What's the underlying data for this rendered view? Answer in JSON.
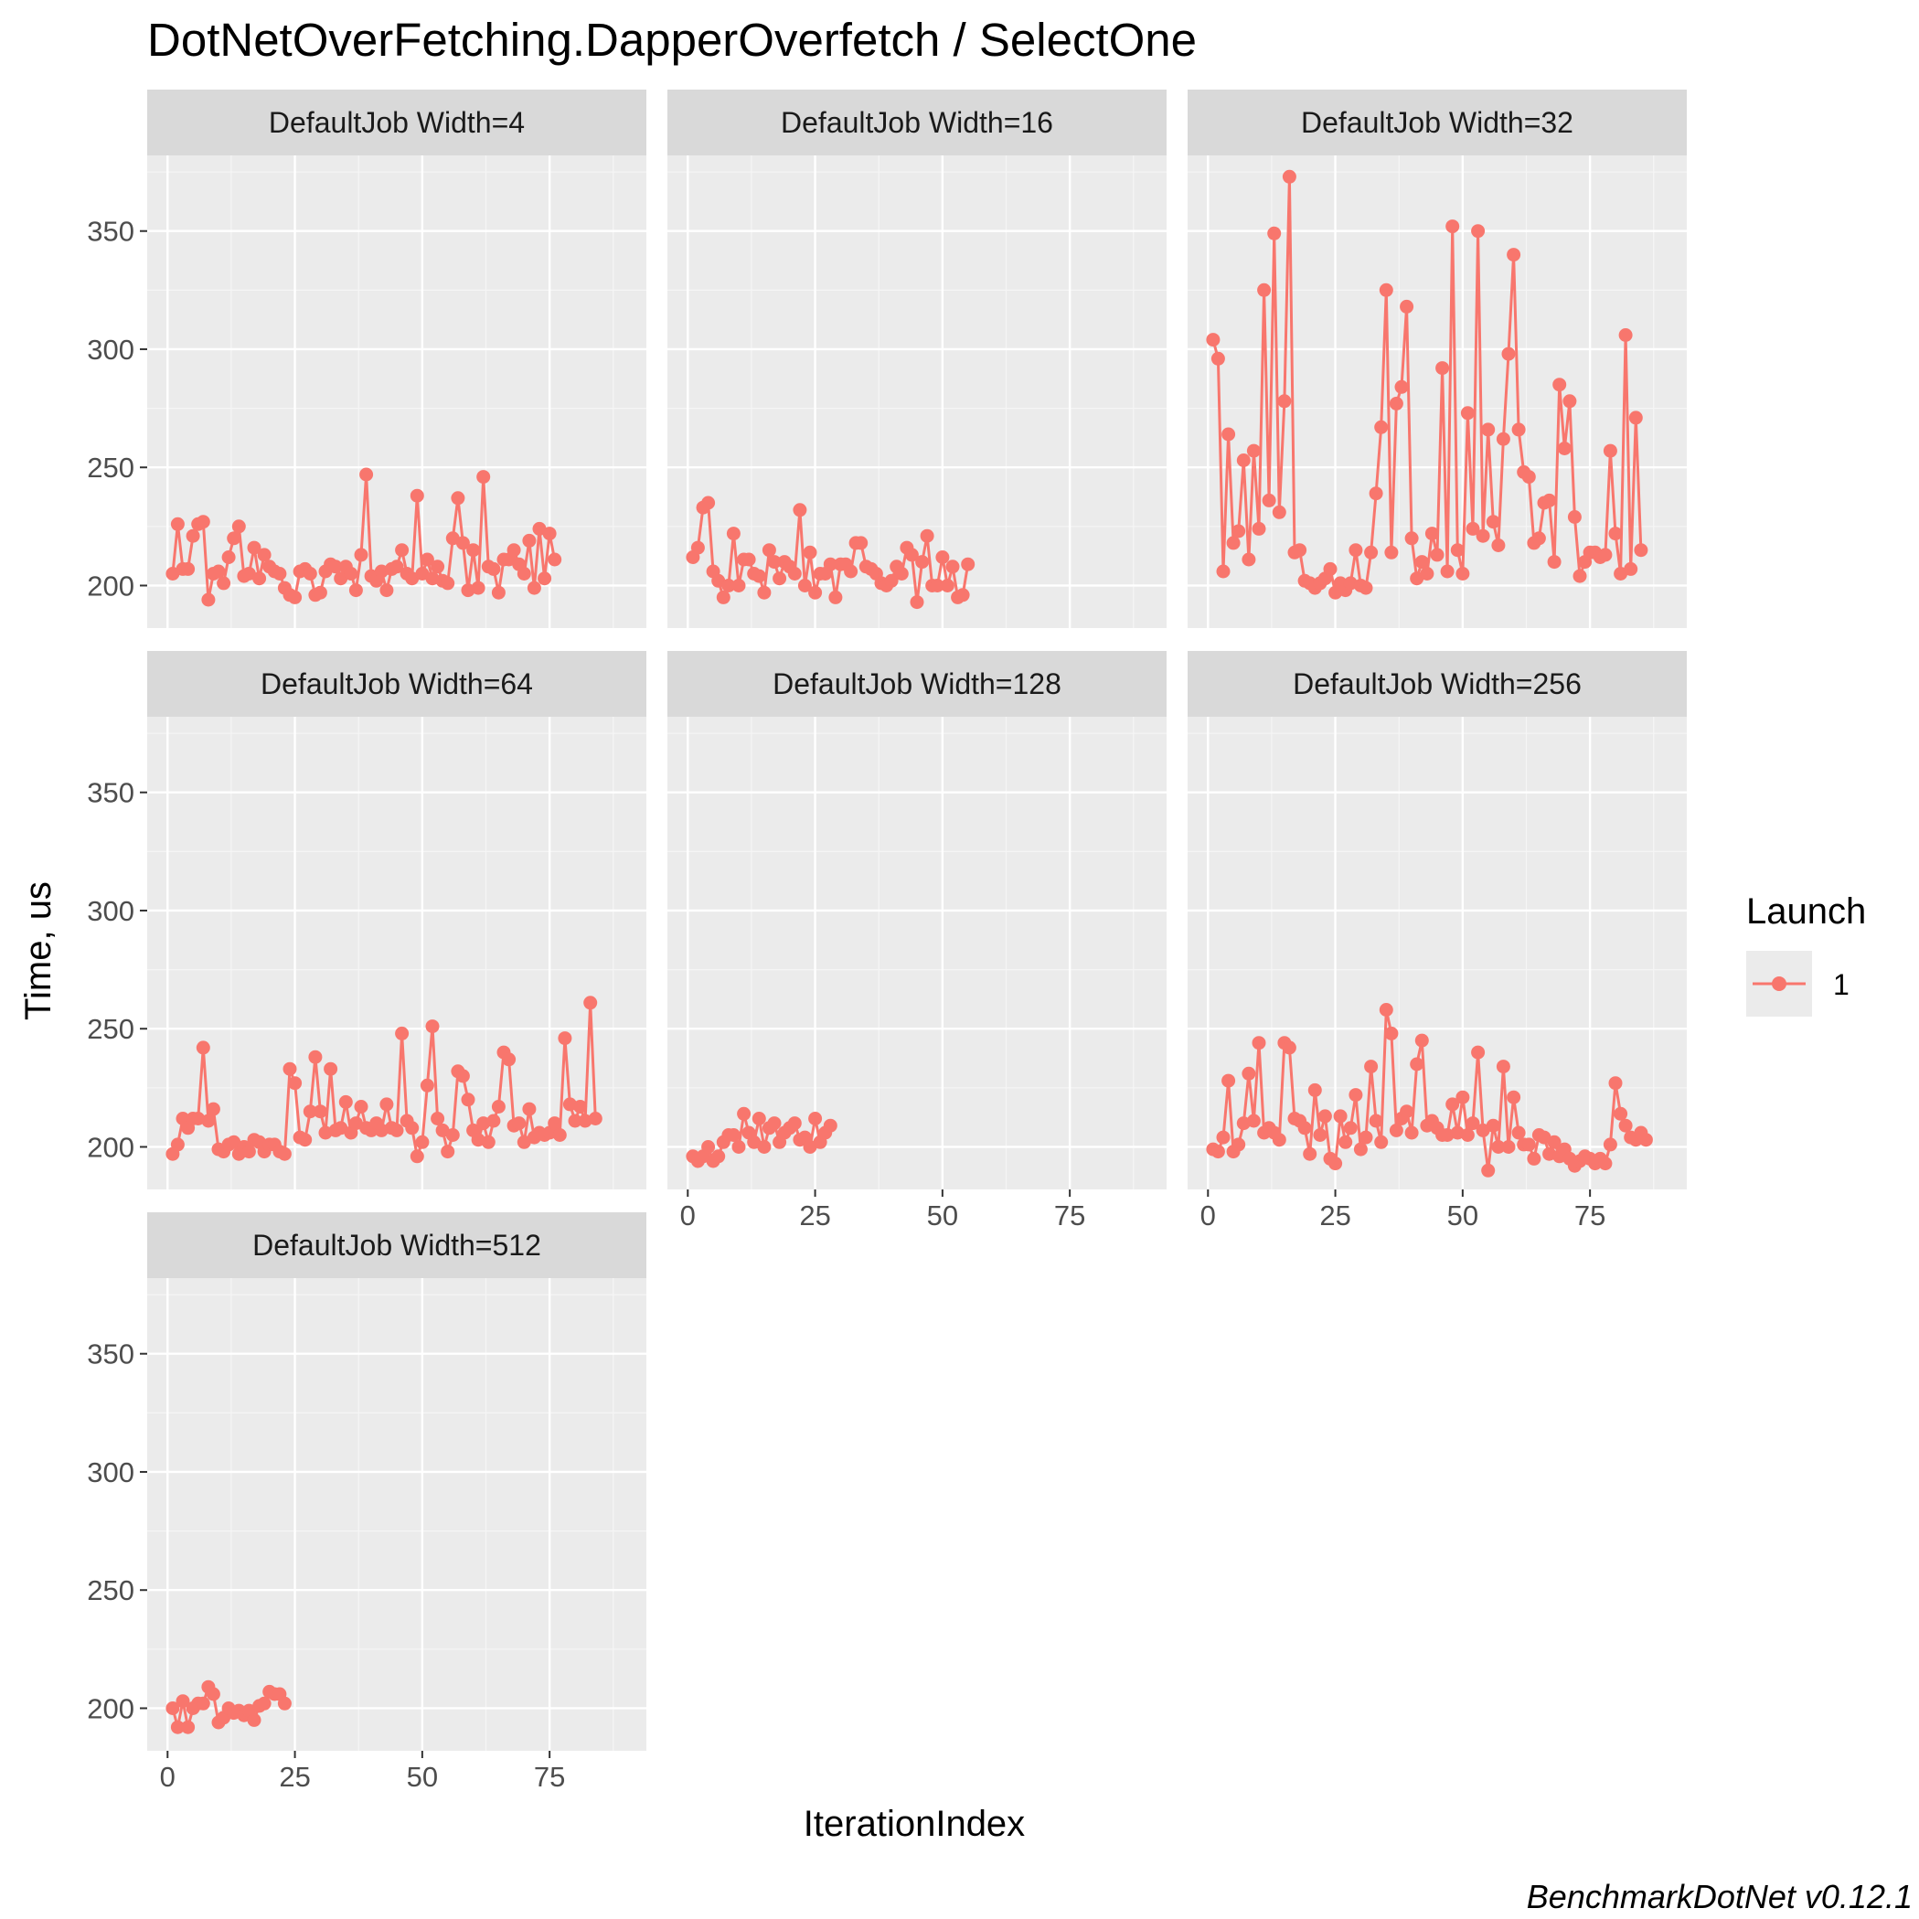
{
  "chart_data": {
    "type": "line",
    "title": "DotNetOverFetching.DapperOverfetch / SelectOne",
    "xlabel": "IterationIndex",
    "ylabel": "Time, us",
    "caption": "BenchmarkDotNet v0.12.1",
    "legend": {
      "title": "Launch",
      "position": "right",
      "entries": [
        {
          "label": "1",
          "color": "#F8766D"
        }
      ]
    },
    "xlim": [
      -4,
      94
    ],
    "ylim": [
      182,
      382
    ],
    "x_ticks": [
      0,
      25,
      50,
      75
    ],
    "y_ticks": [
      200,
      250,
      300,
      350
    ],
    "grid": true,
    "series_color": "#F8766D",
    "panels": [
      {
        "strip": "DefaultJob Width=4",
        "x_start": 1,
        "values": [
          205,
          226,
          207,
          207,
          221,
          226,
          227,
          194,
          205,
          206,
          201,
          212,
          220,
          225,
          204,
          205,
          216,
          203,
          213,
          208,
          206,
          205,
          199,
          196,
          195,
          206,
          207,
          205,
          196,
          197,
          206,
          209,
          208,
          203,
          208,
          205,
          198,
          213,
          247,
          204,
          202,
          206,
          198,
          207,
          208,
          215,
          205,
          203,
          238,
          205,
          211,
          203,
          208,
          202,
          201,
          220,
          237,
          218,
          198,
          215,
          199,
          246,
          208,
          207,
          197,
          211,
          211,
          215,
          209,
          205,
          219,
          199,
          224,
          203,
          222,
          211
        ]
      },
      {
        "strip": "DefaultJob Width=16",
        "x_start": 1,
        "values": [
          212,
          216,
          233,
          235,
          206,
          202,
          195,
          200,
          222,
          200,
          211,
          211,
          205,
          204,
          197,
          215,
          210,
          203,
          210,
          208,
          205,
          232,
          200,
          214,
          197,
          205,
          205,
          209,
          195,
          209,
          209,
          206,
          218,
          218,
          208,
          207,
          205,
          201,
          200,
          202,
          208,
          205,
          216,
          213,
          193,
          210,
          221,
          200,
          200,
          212,
          200,
          208,
          195,
          196,
          209
        ]
      },
      {
        "strip": "DefaultJob Width=32",
        "x_start": 1,
        "values": [
          304,
          296,
          206,
          264,
          218,
          223,
          253,
          211,
          257,
          224,
          325,
          236,
          349,
          231,
          278,
          373,
          214,
          215,
          202,
          201,
          199,
          201,
          203,
          207,
          197,
          201,
          198,
          201,
          215,
          200,
          199,
          214,
          239,
          267,
          325,
          214,
          277,
          284,
          318,
          220,
          203,
          210,
          205,
          222,
          213,
          292,
          206,
          352,
          215,
          205,
          273,
          224,
          350,
          221,
          266,
          227,
          217,
          262,
          298,
          340,
          266,
          248,
          246,
          218,
          220,
          235,
          236,
          210,
          285,
          258,
          278,
          229,
          204,
          210,
          214,
          214,
          212,
          213,
          257,
          222,
          205,
          306,
          207,
          271,
          215
        ]
      },
      {
        "strip": "DefaultJob Width=64",
        "x_start": 1,
        "values": [
          197,
          201,
          212,
          208,
          212,
          212,
          242,
          211,
          216,
          199,
          198,
          201,
          202,
          197,
          200,
          198,
          203,
          202,
          198,
          201,
          201,
          198,
          197,
          233,
          227,
          204,
          203,
          215,
          238,
          215,
          206,
          233,
          207,
          208,
          219,
          206,
          210,
          217,
          208,
          207,
          210,
          207,
          218,
          208,
          207,
          248,
          211,
          208,
          196,
          202,
          226,
          251,
          212,
          207,
          198,
          205,
          232,
          230,
          220,
          207,
          203,
          210,
          202,
          211,
          217,
          240,
          237,
          209,
          210,
          202,
          216,
          204,
          206,
          205,
          206,
          210,
          205,
          246,
          218,
          211,
          217,
          211,
          261,
          212
        ]
      },
      {
        "strip": "DefaultJob Width=128",
        "x_start": 1,
        "values": [
          196,
          194,
          196,
          200,
          194,
          196,
          202,
          205,
          205,
          200,
          214,
          206,
          202,
          212,
          200,
          208,
          210,
          202,
          206,
          208,
          210,
          203,
          204,
          200,
          212,
          202,
          206,
          209
        ]
      },
      {
        "strip": "DefaultJob Width=256",
        "x_start": 1,
        "values": [
          199,
          198,
          204,
          228,
          198,
          201,
          210,
          231,
          211,
          244,
          206,
          208,
          206,
          203,
          244,
          242,
          212,
          211,
          208,
          197,
          224,
          205,
          213,
          195,
          193,
          213,
          202,
          208,
          222,
          199,
          204,
          234,
          211,
          202,
          258,
          248,
          207,
          212,
          215,
          206,
          235,
          245,
          209,
          211,
          208,
          205,
          205,
          218,
          206,
          221,
          205,
          210,
          240,
          207,
          190,
          209,
          200,
          234,
          200,
          221,
          206,
          201,
          201,
          195,
          205,
          204,
          197,
          202,
          196,
          199,
          195,
          192,
          194,
          196,
          195,
          193,
          195,
          193,
          201,
          227,
          214,
          209,
          204,
          203,
          206,
          203
        ]
      },
      {
        "strip": "DefaultJob Width=512",
        "x_start": 1,
        "values": [
          200,
          192,
          203,
          192,
          200,
          202,
          202,
          209,
          206,
          194,
          196,
          200,
          198,
          199,
          197,
          199,
          195,
          201,
          202,
          207,
          206,
          206,
          202
        ]
      }
    ]
  }
}
